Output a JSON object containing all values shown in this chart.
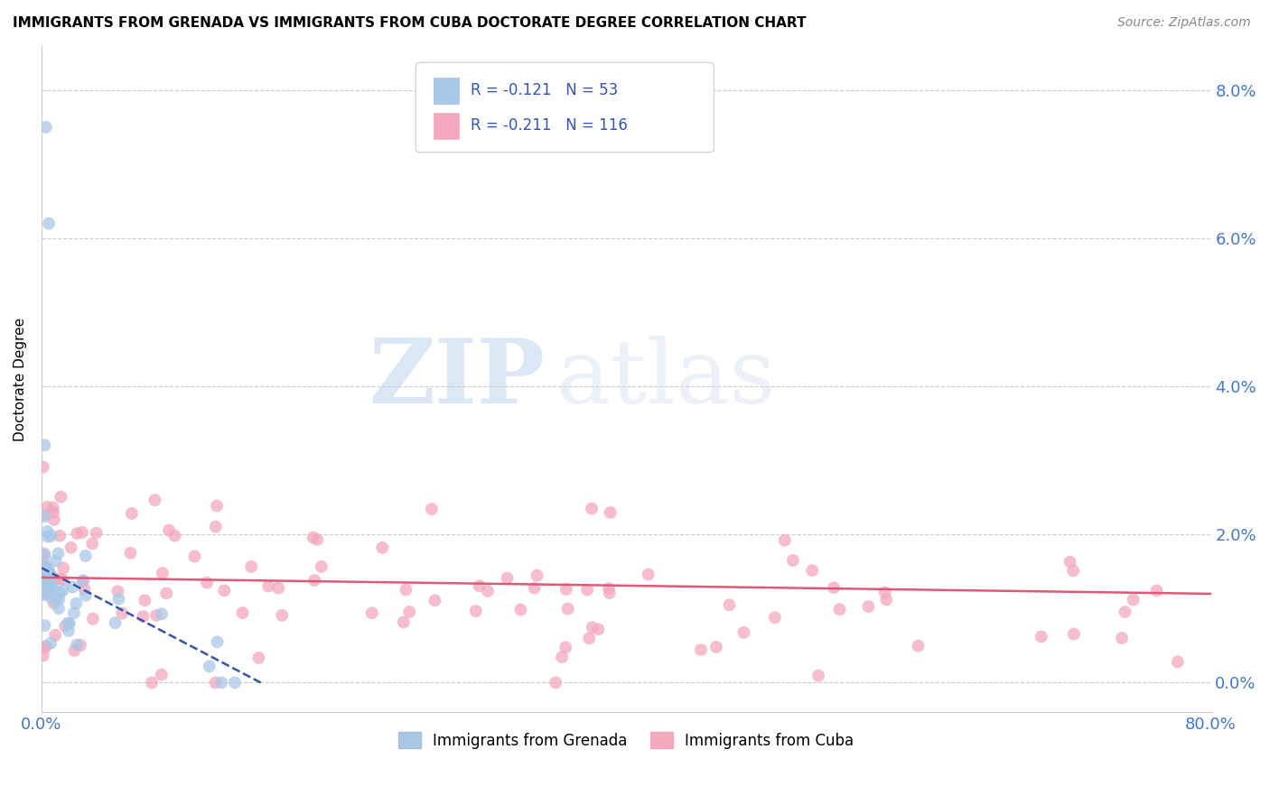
{
  "title": "IMMIGRANTS FROM GRENADA VS IMMIGRANTS FROM CUBA DOCTORATE DEGREE CORRELATION CHART",
  "source": "Source: ZipAtlas.com",
  "ylabel": "Doctorate Degree",
  "xlim": [
    0.0,
    80.0
  ],
  "ylim": [
    -0.4,
    8.6
  ],
  "watermark_zip": "ZIP",
  "watermark_atlas": "atlas",
  "legend_line1": "R = -0.121   N = 53",
  "legend_line2": "R = -0.211   N = 116",
  "legend_label1": "Immigrants from Grenada",
  "legend_label2": "Immigrants from Cuba",
  "color_grenada": "#a8c8e8",
  "color_cuba": "#f4a8bc",
  "line_color_grenada": "#3355aa",
  "line_color_cuba": "#e05878",
  "title_fontsize": 11,
  "source_fontsize": 10,
  "tick_fontsize": 13,
  "ylabel_fontsize": 11
}
